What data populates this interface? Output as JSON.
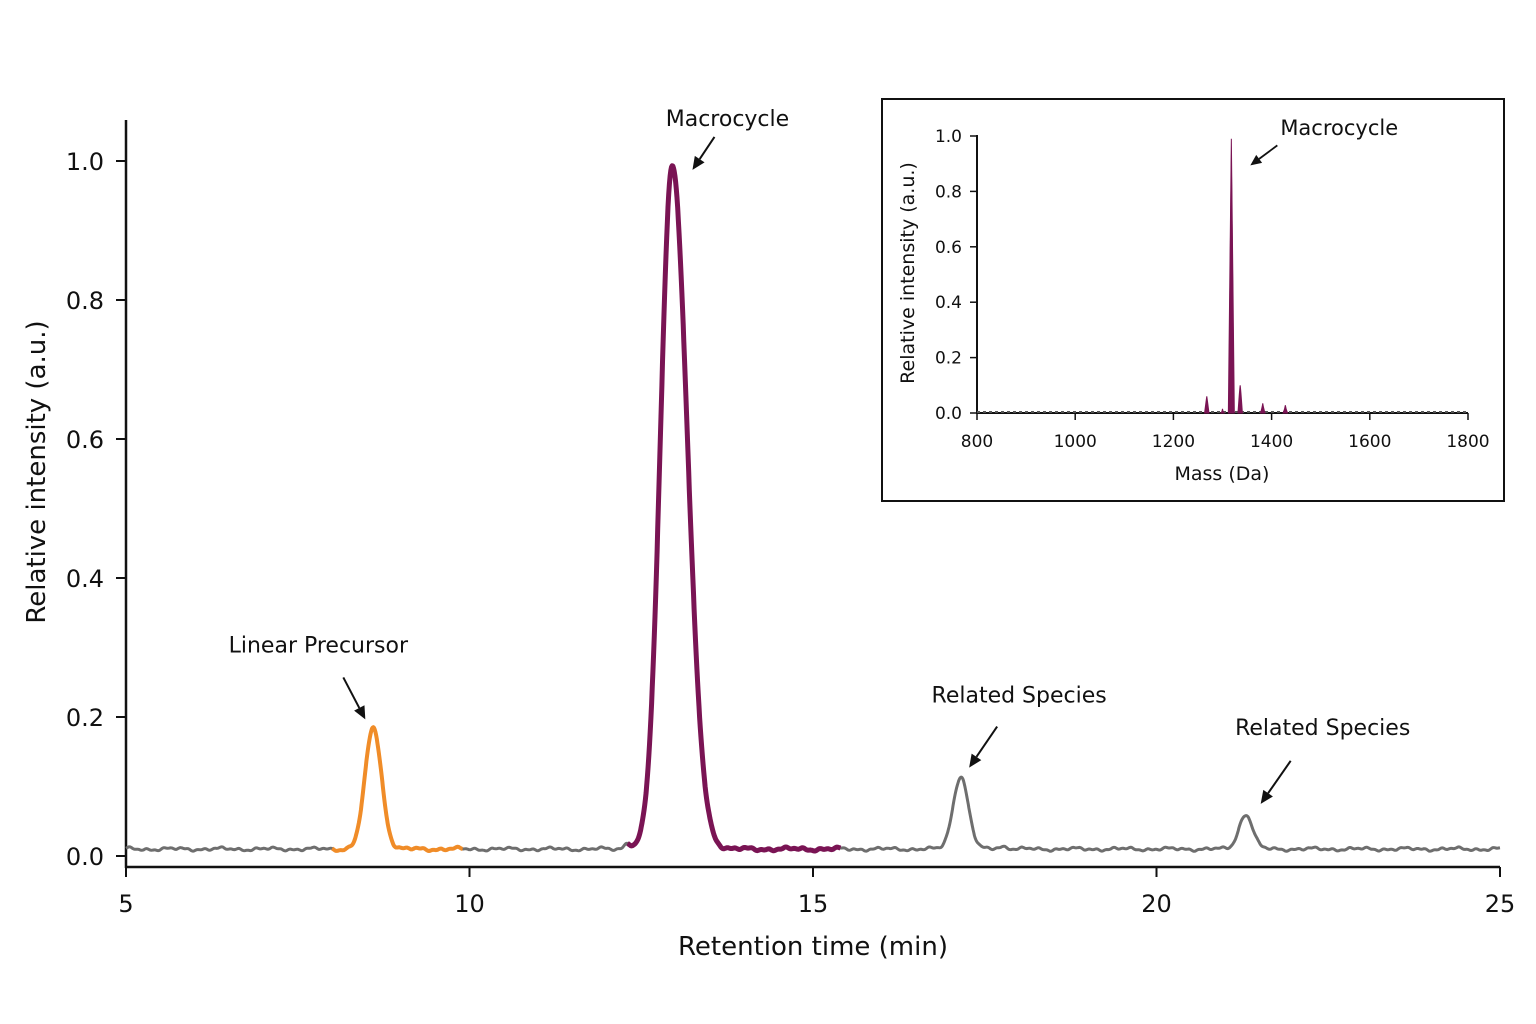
{
  "chart_data": [
    {
      "type": "line",
      "xlabel": "Retention time (min)",
      "ylabel": "Relative intensity (a.u.)",
      "xlim": [
        5,
        25
      ],
      "ylim": [
        0,
        1.05
      ],
      "xticks": [
        5,
        10,
        15,
        20,
        25
      ],
      "yticks": [
        0.0,
        0.2,
        0.4,
        0.6,
        0.8,
        1.0
      ],
      "ytick_labels": [
        "0.0",
        "0.2",
        "0.4",
        "0.6",
        "0.8",
        "1.0"
      ],
      "grid": false,
      "baseline": 0.01,
      "series": [
        {
          "name": "Linear Precursor",
          "color": "#f08c28",
          "range": [
            8.0,
            9.9
          ],
          "peak": {
            "x": 8.6,
            "y": 0.185,
            "width": 0.12
          }
        },
        {
          "name": "Macrocycle",
          "color": "#7a1454",
          "range": [
            12.3,
            15.4
          ],
          "peak": {
            "x": 12.95,
            "y": 0.995,
            "width": 0.17,
            "tail": 0.22
          }
        },
        {
          "name": "Related Species",
          "color": "#777777",
          "peak": {
            "x": 17.15,
            "y": 0.115,
            "width": 0.11
          }
        },
        {
          "name": "Related Species",
          "color": "#777777",
          "peak": {
            "x": 21.3,
            "y": 0.06,
            "width": 0.1
          }
        }
      ],
      "trace_color": "#6e6e6e",
      "annotations": [
        {
          "text": "Linear Precursor",
          "x": 8.6,
          "y": 0.185
        },
        {
          "text": "Macrocycle",
          "x": 13.1,
          "y": 0.98
        },
        {
          "text": "Related Species",
          "x": 17.2,
          "y": 0.12
        },
        {
          "text": "Related Species",
          "x": 21.4,
          "y": 0.065
        }
      ]
    },
    {
      "type": "line",
      "inset": true,
      "xlabel": "Mass (Da)",
      "ylabel": "Relative intensity (a.u.)",
      "xlim": [
        800,
        1800
      ],
      "ylim": [
        0,
        1.0
      ],
      "xticks": [
        800,
        1000,
        1200,
        1400,
        1600,
        1800
      ],
      "yticks": [
        0.0,
        0.2,
        0.4,
        0.6,
        0.8,
        1.0
      ],
      "ytick_labels": [
        "0.0",
        "0.2",
        "0.4",
        "0.6",
        "0.8",
        "1.0"
      ],
      "grid": false,
      "color": "#7a1454",
      "peaks": [
        {
          "x": 1268,
          "y": 0.06
        },
        {
          "x": 1300,
          "y": 0.015
        },
        {
          "x": 1318,
          "y": 0.99
        },
        {
          "x": 1336,
          "y": 0.1
        },
        {
          "x": 1382,
          "y": 0.035
        },
        {
          "x": 1428,
          "y": 0.028
        }
      ],
      "annotations": [
        {
          "text": "Macrocycle",
          "x": 1320,
          "y": 0.93
        }
      ]
    }
  ]
}
